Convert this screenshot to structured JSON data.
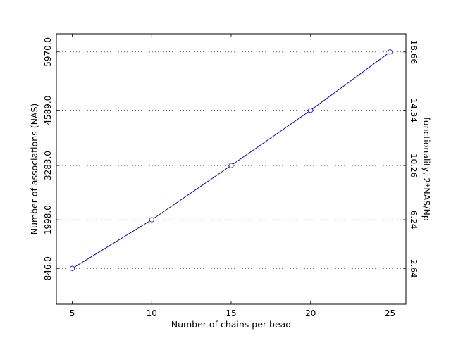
{
  "chart_data": {
    "type": "line",
    "title": "",
    "xlabel": "Number of chains per bead",
    "ylabel": "Number of associations (NAS)",
    "y2label": "functionality, 2*NAS/Np",
    "x": [
      5,
      10,
      15,
      20,
      25
    ],
    "series": [
      {
        "values": [
          846.0,
          1998.0,
          3283.0,
          4589.0,
          5970.0
        ]
      }
    ],
    "xlim": [
      4,
      26
    ],
    "ylim": [
      0,
      6400
    ],
    "xticks": [
      "5",
      "10",
      "15",
      "20",
      "25"
    ],
    "yticks": [
      "846.0",
      "1998.0",
      "3283.0",
      "4589.0",
      "5970.0"
    ],
    "y2ticks": [
      "2.64",
      "6.24",
      "10.26",
      "14.34",
      "18.66"
    ],
    "grid": "horizontal dotted at y ticks",
    "legend": "none",
    "colors": {
      "line": "#0000ff",
      "marker_face": "#ffffff",
      "grid": "#000000",
      "frame": "#000000"
    }
  }
}
